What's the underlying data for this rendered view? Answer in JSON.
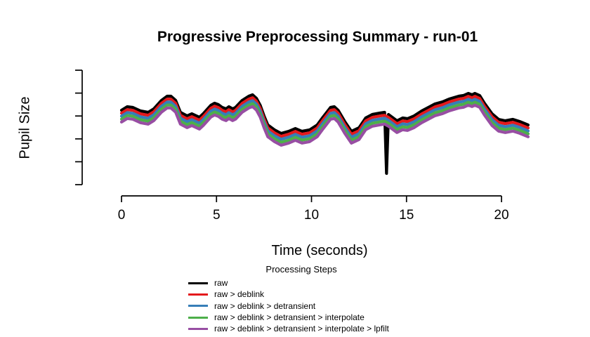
{
  "chart_data": {
    "type": "line",
    "title": "Progressive Preprocessing Summary - run-01",
    "xlabel": "Time (seconds)",
    "ylabel": "Pupil Size",
    "x_ticks": [
      0,
      5,
      10,
      15,
      20
    ],
    "x_range": [
      0,
      21.4
    ],
    "y_axis": {
      "tick_count": 6,
      "tick_labels_shown": false,
      "value_range_au": [
        0,
        163
      ]
    },
    "grid": false,
    "legend": {
      "title": "Processing Steps",
      "position": "bottom"
    },
    "x": [
      0,
      0.3,
      0.6,
      1.0,
      1.4,
      1.7,
      2.1,
      2.4,
      2.6,
      2.85,
      3.1,
      3.45,
      3.7,
      4.1,
      4.3,
      4.7,
      4.9,
      5.1,
      5.3,
      5.5,
      5.65,
      5.85,
      6.0,
      6.35,
      6.7,
      6.9,
      7.1,
      7.3,
      7.5,
      7.7,
      8.05,
      8.4,
      8.8,
      9.15,
      9.5,
      9.9,
      10.3,
      10.6,
      11.0,
      11.2,
      11.4,
      11.75,
      12.1,
      12.5,
      12.85,
      13.2,
      13.6,
      13.85,
      14.05,
      14.25,
      14.5,
      14.8,
      15.05,
      15.4,
      15.8,
      16.15,
      16.5,
      16.9,
      17.25,
      17.75,
      18.0,
      18.25,
      18.45,
      18.6,
      18.85,
      19.1,
      19.5,
      19.85,
      20.2,
      20.6,
      20.95,
      21.4
    ],
    "pupil_au": [
      103,
      108,
      107,
      102,
      100,
      105,
      117,
      123,
      123,
      117,
      100,
      95,
      98,
      93,
      98,
      110,
      113,
      111,
      107,
      105,
      108,
      105,
      107,
      117,
      123,
      125,
      120,
      110,
      95,
      82,
      75,
      70,
      73,
      77,
      73,
      75,
      82,
      93,
      107,
      108,
      103,
      87,
      73,
      78,
      92,
      97,
      99,
      100,
      97,
      93,
      88,
      92,
      91,
      95,
      102,
      107,
      112,
      115,
      119,
      123,
      124,
      127,
      125,
      127,
      124,
      113,
      98,
      90,
      88,
      90,
      87,
      82
    ],
    "raw_blink_spike": {
      "t": 13.95,
      "value": 13
    },
    "series": [
      {
        "name": "raw",
        "color": "#000000",
        "offset_au": 0,
        "has_spike": true
      },
      {
        "name": "raw > deblink",
        "color": "#E4191C",
        "offset_au": -4.2,
        "has_spike": false
      },
      {
        "name": "raw > deblink > detransient",
        "color": "#377EB8",
        "offset_au": -8.4,
        "has_spike": false
      },
      {
        "name": "raw > deblink > detransient > interpolate",
        "color": "#4DAF4A",
        "offset_au": -12.6,
        "has_spike": false
      },
      {
        "name": "raw > deblink > detransient > interpolate > lpfilt",
        "color": "#984EA3",
        "offset_au": -16.8,
        "has_spike": false
      }
    ]
  }
}
